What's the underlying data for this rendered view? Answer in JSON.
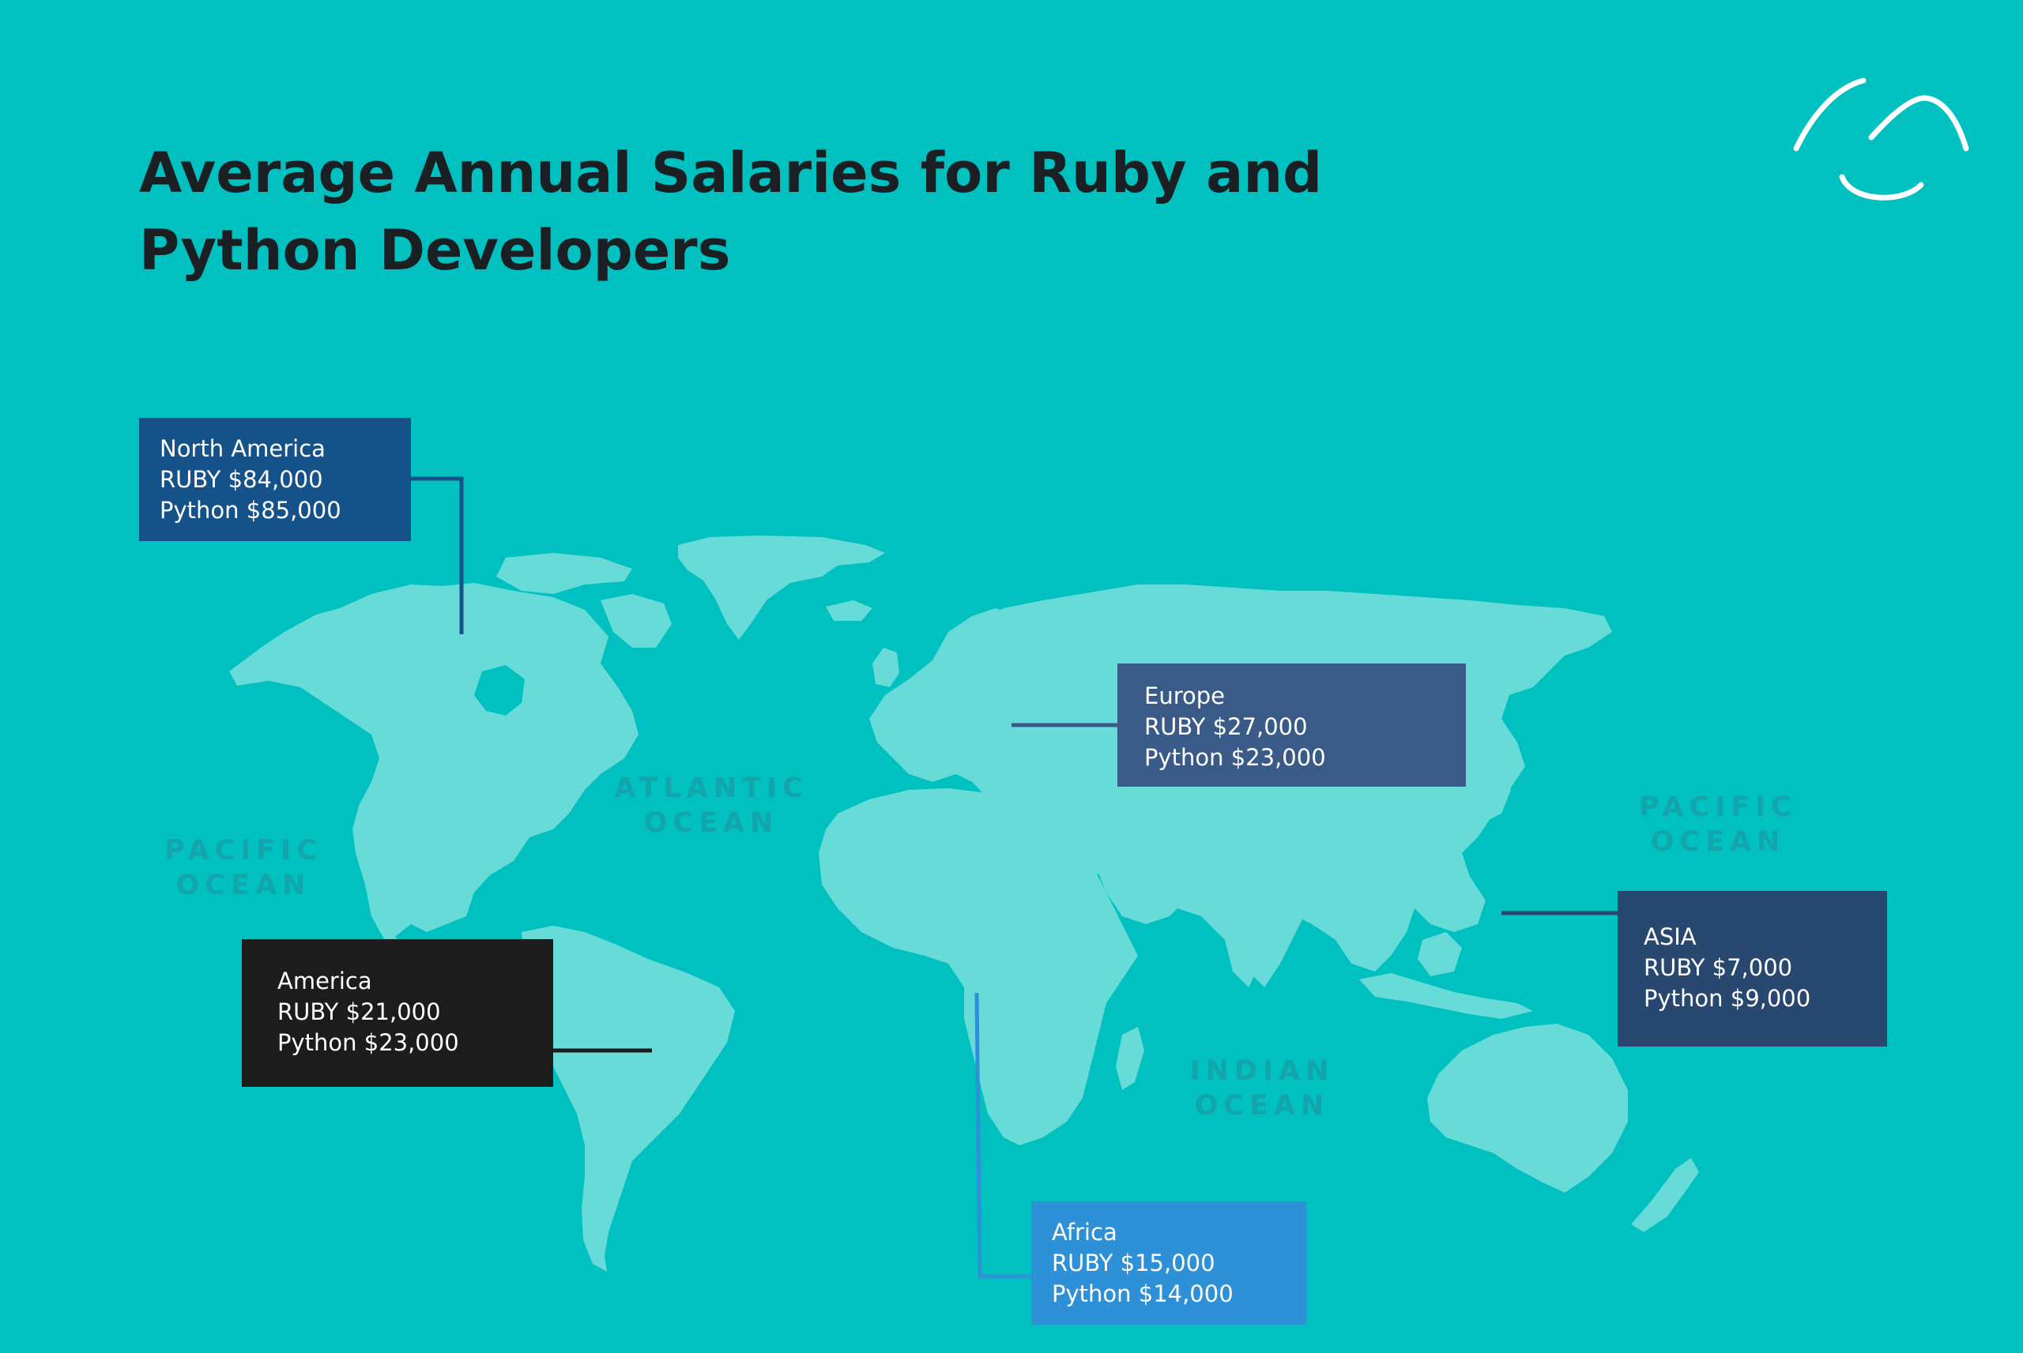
{
  "title": "Average Annual Salaries for Ruby and Python Developers",
  "oceans": {
    "pacific_west": [
      "PACIFIC",
      "OCEAN"
    ],
    "atlantic": [
      "ATLANTIC",
      "OCEAN"
    ],
    "indian": [
      "INDIAN",
      "OCEAN"
    ],
    "pacific_east": [
      "PACIFIC",
      "OCEAN"
    ]
  },
  "regions": {
    "north_america": {
      "name": "North America",
      "ruby": "RUBY $84,000",
      "python": "Python $85,000",
      "color": "#16528a"
    },
    "america": {
      "name": "America",
      "ruby": "RUBY $21,000",
      "python": "Python $23,000",
      "color": "#1c1c1c"
    },
    "europe": {
      "name": "Europe",
      "ruby": "RUBY $27,000",
      "python": "Python $23,000",
      "color": "#3a5b87"
    },
    "asia": {
      "name": "ASIA",
      "ruby": "RUBY $7,000",
      "python": "Python $9,000",
      "color": "#294870"
    },
    "africa": {
      "name": "Africa",
      "ruby": "RUBY $15,000",
      "python": "Python $14,000",
      "color": "#2e90d6"
    }
  },
  "colors": {
    "background": "#00c0c0",
    "land": "#66dbd8",
    "ocean_label": "#12a6ac",
    "title": "#1a1f24"
  },
  "logo": "wave-smile-logo"
}
